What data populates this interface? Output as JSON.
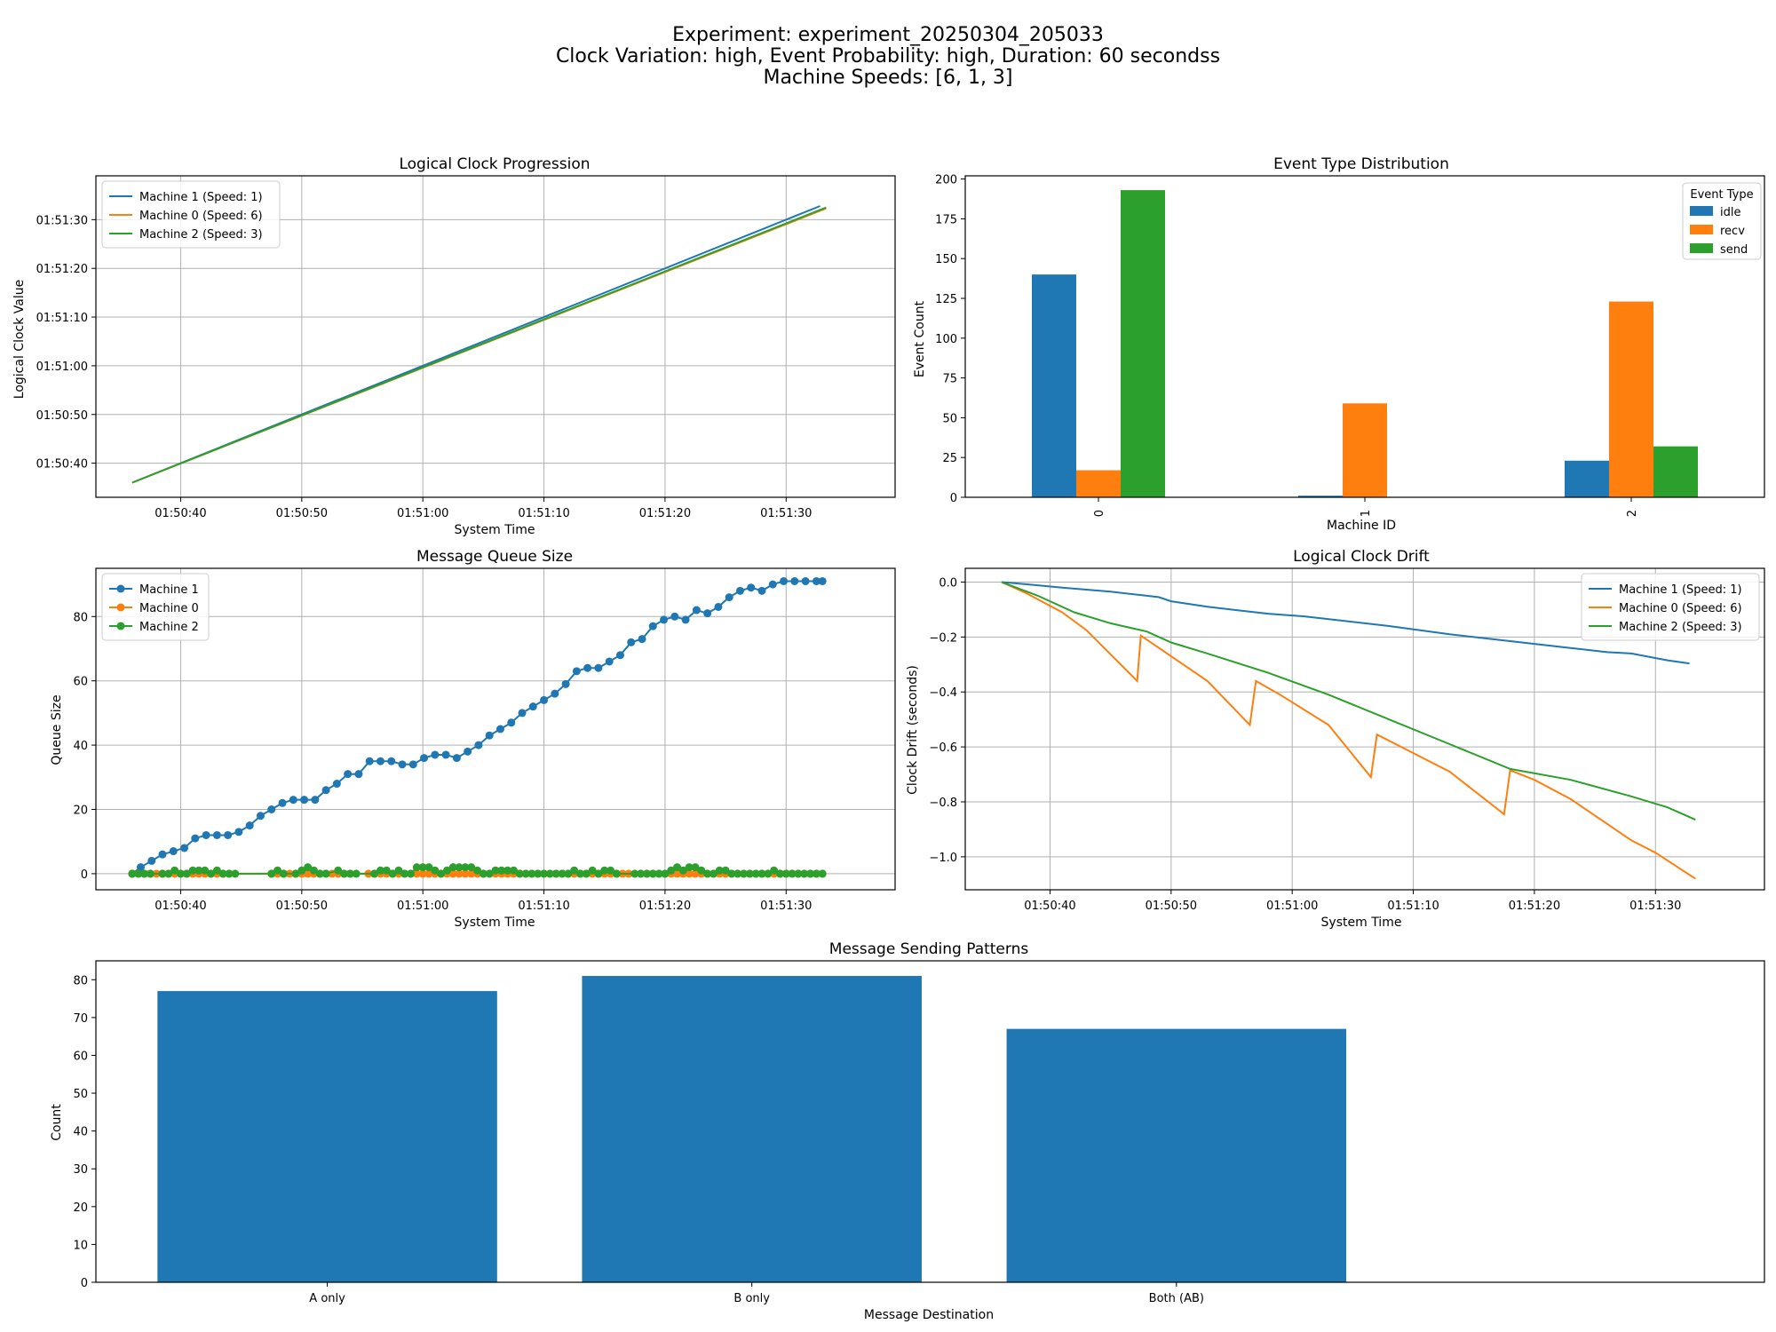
{
  "figure": {
    "title_lines": [
      "Experiment: experiment_20250304_205033",
      "Clock Variation: high, Event Probability: high, Duration: 60 secondss",
      "Machine Speeds: [6, 1, 3]"
    ]
  },
  "colors": {
    "blue": "#1f77b4",
    "orange": "#ff7f0e",
    "green": "#2ca02c",
    "grid": "#b0b0b0"
  },
  "chart_data": [
    {
      "id": "clock",
      "type": "line",
      "title": "Logical Clock Progression",
      "xlabel": "System Time",
      "ylabel": "Logical Clock Value",
      "xlim": [
        0,
        66
      ],
      "ylim": [
        0,
        66
      ],
      "x_ticks": [
        {
          "v": 7,
          "label": "01:50:40"
        },
        {
          "v": 17,
          "label": "01:50:50"
        },
        {
          "v": 27,
          "label": "01:51:00"
        },
        {
          "v": 37,
          "label": "01:51:10"
        },
        {
          "v": 47,
          "label": "01:51:20"
        },
        {
          "v": 57,
          "label": "01:51:30"
        }
      ],
      "y_ticks": [
        {
          "v": 7,
          "label": "01:50:40"
        },
        {
          "v": 17,
          "label": "01:50:50"
        },
        {
          "v": 27,
          "label": "01:51:00"
        },
        {
          "v": 37,
          "label": "01:51:10"
        },
        {
          "v": 47,
          "label": "01:51:20"
        },
        {
          "v": 57,
          "label": "01:51:30"
        }
      ],
      "grid": true,
      "legend": "upper-left",
      "series": [
        {
          "name": "Machine 1 (Speed: 1)",
          "color": "#1f77b4",
          "x": [
            3,
            59.8
          ],
          "y": [
            3,
            59.8
          ]
        },
        {
          "name": "Machine 0 (Speed: 6)",
          "color": "#ff7f0e",
          "x": [
            3,
            60.3
          ],
          "y": [
            3,
            59.3
          ]
        },
        {
          "name": "Machine 2 (Speed: 3)",
          "color": "#2ca02c",
          "x": [
            3,
            60.3
          ],
          "y": [
            3,
            59.5
          ]
        }
      ]
    },
    {
      "id": "events",
      "type": "bar",
      "title": "Event Type Distribution",
      "xlabel": "Machine ID",
      "ylabel": "Event Count",
      "categories": [
        "0",
        "1",
        "2"
      ],
      "ylim": [
        0,
        202
      ],
      "y_ticks": [
        0,
        25,
        50,
        75,
        100,
        125,
        150,
        175,
        200
      ],
      "legend_title": "Event Type",
      "legend": "upper-right",
      "series": [
        {
          "name": "idle",
          "color": "#1f77b4",
          "values": [
            140,
            1,
            23
          ]
        },
        {
          "name": "recv",
          "color": "#ff7f0e",
          "values": [
            17,
            59,
            123
          ]
        },
        {
          "name": "send",
          "color": "#2ca02c",
          "values": [
            193,
            0,
            32
          ]
        }
      ]
    },
    {
      "id": "queue",
      "type": "line",
      "title": "Message Queue Size",
      "xlabel": "System Time",
      "ylabel": "Queue Size",
      "xlim": [
        0,
        66
      ],
      "ylim": [
        -5,
        95
      ],
      "x_ticks": [
        {
          "v": 7,
          "label": "01:50:40"
        },
        {
          "v": 17,
          "label": "01:50:50"
        },
        {
          "v": 27,
          "label": "01:51:00"
        },
        {
          "v": 37,
          "label": "01:51:10"
        },
        {
          "v": 47,
          "label": "01:51:20"
        },
        {
          "v": 57,
          "label": "01:51:30"
        }
      ],
      "y_ticks": [
        0,
        20,
        40,
        60,
        80
      ],
      "grid": true,
      "legend": "upper-left",
      "series": [
        {
          "name": "Machine 1",
          "color": "#1f77b4",
          "x": [
            3.0,
            3.7,
            4.6,
            5.5,
            6.4,
            7.3,
            8.2,
            9.1,
            10.0,
            10.9,
            11.8,
            12.7,
            13.6,
            14.5,
            15.4,
            16.3,
            17.2,
            18.1,
            19.0,
            19.9,
            20.8,
            21.7,
            22.6,
            23.5,
            24.4,
            25.3,
            26.2,
            27.1,
            28.0,
            28.9,
            29.8,
            30.7,
            31.6,
            32.5,
            33.4,
            34.3,
            35.2,
            36.1,
            37.0,
            37.9,
            38.8,
            39.7,
            40.6,
            41.5,
            42.4,
            43.3,
            44.2,
            45.1,
            46.0,
            46.9,
            47.8,
            48.7,
            49.6,
            50.5,
            51.4,
            52.3,
            53.2,
            54.1,
            55.0,
            55.9,
            56.8,
            57.7,
            58.6,
            59.5,
            60.0
          ],
          "y": [
            0,
            2,
            4,
            6,
            7,
            8,
            11,
            12,
            12,
            12,
            13,
            15,
            18,
            20,
            22,
            23,
            23,
            23,
            26,
            28,
            31,
            31,
            35,
            35,
            35,
            34,
            34,
            36,
            37,
            37,
            36,
            38,
            40,
            43,
            45,
            47,
            50,
            52,
            54,
            56,
            59,
            63,
            64,
            64,
            66,
            68,
            72,
            73,
            77,
            79,
            80,
            79,
            82,
            81,
            83,
            86,
            88,
            89,
            88,
            90,
            91,
            91,
            91,
            91,
            91
          ]
        },
        {
          "name": "Machine 0",
          "color": "#ff7f0e",
          "x": [
            3,
            3.5,
            4,
            4.5,
            5,
            5.5,
            6,
            6.5,
            7,
            7.5,
            8,
            8.5,
            9,
            9.5,
            10,
            10.5,
            11,
            14.5,
            15,
            15.5,
            16,
            16.5,
            17,
            17.5,
            18,
            18.5,
            19,
            19.5,
            20,
            20.5,
            21,
            22.5,
            23,
            23.5,
            24,
            24.5,
            25,
            25.5,
            26,
            26.5,
            27,
            27.5,
            28,
            28.5,
            29,
            29.5,
            30,
            30.5,
            31,
            31.5,
            32,
            32.5,
            33,
            33.5,
            34,
            34.5,
            35,
            35.5,
            36,
            36.5,
            37,
            37.5,
            38,
            38.5,
            39,
            39.5,
            40,
            40.5,
            41,
            41.5,
            42,
            42.5,
            43,
            43.5,
            44,
            45,
            45.5,
            46,
            46.5,
            47,
            47.5,
            48,
            48.5,
            49,
            49.5,
            50,
            50.5,
            51,
            51.5,
            52,
            52.5,
            53,
            53.5,
            54,
            54.5,
            55,
            55.5,
            56,
            56.5,
            57,
            57.5,
            58,
            58.5,
            59,
            59.5,
            60
          ],
          "y": [
            0,
            0,
            0,
            0,
            0,
            0,
            0,
            0,
            0,
            0,
            0,
            0,
            0,
            0,
            0,
            0,
            0,
            0,
            0,
            0,
            0,
            0,
            0,
            0,
            0,
            0,
            0,
            0,
            0,
            0,
            0,
            0,
            0,
            0,
            0,
            0,
            0,
            0,
            0,
            0,
            0,
            0,
            0,
            0,
            0,
            0,
            0,
            0,
            0,
            0,
            0,
            0,
            0,
            0,
            0,
            0,
            0,
            0,
            0,
            0,
            0,
            0,
            0,
            0,
            0,
            0,
            0,
            0,
            0,
            0,
            0,
            0,
            0,
            0,
            0,
            0,
            0,
            0,
            0,
            0,
            0,
            0,
            0,
            0,
            0,
            0,
            0,
            0,
            0,
            0,
            0,
            0,
            0,
            0,
            0,
            0,
            0,
            0,
            0,
            0,
            0,
            0,
            0,
            0,
            0,
            0
          ]
        },
        {
          "name": "Machine 2",
          "color": "#2ca02c",
          "x": [
            3,
            3.5,
            4,
            4.5,
            5.5,
            6,
            6.5,
            7,
            7.5,
            8,
            8.5,
            9,
            9.5,
            10,
            10.5,
            11,
            11.5,
            14.5,
            15,
            15.5,
            16.5,
            17,
            17.5,
            18,
            18.5,
            19,
            20,
            20.5,
            21,
            21.5,
            23,
            23.5,
            24,
            24.5,
            25,
            25.5,
            26,
            26.5,
            27,
            27.5,
            28,
            28.5,
            29,
            29.5,
            30,
            30.5,
            31,
            31.5,
            32,
            32.5,
            33,
            33.5,
            34,
            34.5,
            35,
            35.5,
            36,
            36.5,
            37,
            37.5,
            38,
            38.5,
            39,
            39.5,
            40,
            40.5,
            41,
            41.5,
            42,
            42.5,
            43,
            44.5,
            45,
            45.5,
            46,
            46.5,
            47,
            47.5,
            48,
            48.5,
            49,
            49.5,
            50,
            50.5,
            51,
            51.5,
            52,
            52.5,
            53,
            53.5,
            54,
            54.5,
            55,
            55.5,
            56,
            56.5,
            57,
            57.5,
            58,
            58.5,
            59,
            59.5,
            60
          ],
          "y": [
            0,
            0,
            0,
            0,
            0,
            0,
            1,
            0,
            0,
            1,
            1,
            1,
            0,
            1,
            0,
            0,
            0,
            0,
            1,
            0,
            0,
            1,
            2,
            1,
            0,
            0,
            1,
            0,
            0,
            0,
            0,
            1,
            1,
            0,
            1,
            0,
            0,
            2,
            2,
            2,
            1,
            0,
            1,
            2,
            2,
            2,
            2,
            1,
            0,
            0,
            1,
            1,
            1,
            1,
            0,
            0,
            0,
            0,
            0,
            0,
            0,
            0,
            0,
            1,
            0,
            0,
            1,
            0,
            1,
            1,
            0,
            0,
            0,
            0,
            0,
            0,
            0,
            1,
            2,
            1,
            2,
            2,
            1,
            0,
            0,
            1,
            1,
            0,
            0,
            0,
            0,
            0,
            0,
            0,
            1,
            0,
            0,
            0,
            0,
            0,
            0,
            0,
            0
          ]
        }
      ]
    },
    {
      "id": "drift",
      "type": "line",
      "title": "Logical Clock Drift",
      "xlabel": "System Time",
      "ylabel": "Clock Drift (seconds)",
      "xlim": [
        0,
        66
      ],
      "ylim": [
        -1.12,
        0.05
      ],
      "x_ticks": [
        {
          "v": 7,
          "label": "01:50:40"
        },
        {
          "v": 17,
          "label": "01:50:50"
        },
        {
          "v": 27,
          "label": "01:51:00"
        },
        {
          "v": 37,
          "label": "01:51:10"
        },
        {
          "v": 47,
          "label": "01:51:20"
        },
        {
          "v": 57,
          "label": "01:51:30"
        }
      ],
      "y_ticks": [
        {
          "v": 0.0,
          "label": "0.0"
        },
        {
          "v": -0.2,
          "label": "−0.2"
        },
        {
          "v": -0.4,
          "label": "−0.4"
        },
        {
          "v": -0.6,
          "label": "−0.6"
        },
        {
          "v": -0.8,
          "label": "−0.8"
        },
        {
          "v": -1.0,
          "label": "−1.0"
        }
      ],
      "grid": true,
      "legend": "upper-right",
      "series": [
        {
          "name": "Machine 1 (Speed: 1)",
          "color": "#1f77b4",
          "x": [
            3,
            5,
            8,
            12,
            15,
            16,
            17,
            20,
            23,
            25,
            28,
            31,
            35,
            40,
            45,
            50,
            53,
            55,
            58,
            59.8
          ],
          "y": [
            0,
            -0.008,
            -0.02,
            -0.035,
            -0.05,
            -0.055,
            -0.07,
            -0.09,
            -0.105,
            -0.115,
            -0.125,
            -0.14,
            -0.16,
            -0.19,
            -0.215,
            -0.24,
            -0.255,
            -0.26,
            -0.285,
            -0.296
          ]
        },
        {
          "name": "Machine 0 (Speed: 6)",
          "color": "#ff7f0e",
          "x": [
            3,
            5,
            8,
            10,
            14.2,
            14.5,
            16,
            20,
            23.5,
            24,
            26,
            30,
            33.5,
            34,
            36,
            40,
            44.5,
            45,
            47,
            50,
            53,
            55,
            57,
            60.3
          ],
          "y": [
            0,
            -0.04,
            -0.11,
            -0.175,
            -0.36,
            -0.195,
            -0.24,
            -0.36,
            -0.52,
            -0.36,
            -0.41,
            -0.52,
            -0.71,
            -0.555,
            -0.6,
            -0.69,
            -0.845,
            -0.685,
            -0.72,
            -0.79,
            -0.88,
            -0.94,
            -0.985,
            -1.08
          ]
        },
        {
          "name": "Machine 2 (Speed: 3)",
          "color": "#2ca02c",
          "x": [
            3,
            6,
            9,
            12,
            15,
            17,
            20,
            25,
            30,
            35,
            40,
            45,
            50,
            55,
            58,
            60.3
          ],
          "y": [
            0,
            -0.05,
            -0.11,
            -0.15,
            -0.18,
            -0.22,
            -0.26,
            -0.33,
            -0.41,
            -0.5,
            -0.59,
            -0.68,
            -0.72,
            -0.78,
            -0.82,
            -0.865
          ]
        }
      ]
    },
    {
      "id": "patterns",
      "type": "bar",
      "title": "Message Sending Patterns",
      "xlabel": "Message Destination",
      "ylabel": "Count",
      "categories": [
        "A only",
        "B only",
        "Both (AB)"
      ],
      "values": [
        77,
        81,
        67
      ],
      "color": "#1f77b4",
      "ylim": [
        0,
        85
      ],
      "y_ticks": [
        0,
        10,
        20,
        30,
        40,
        50,
        60,
        70,
        80
      ]
    }
  ]
}
